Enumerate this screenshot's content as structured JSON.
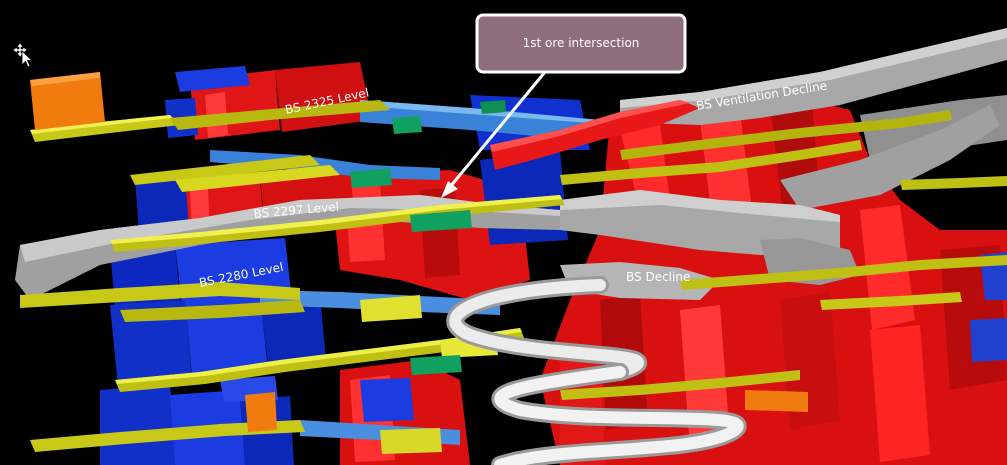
{
  "callout": {
    "text": "1st ore intersection"
  },
  "labels": {
    "level_2325": "BS 2325 Level",
    "level_2297": "BS 2297 Level",
    "level_2280": "BS 2280 Level",
    "ventilation_decline": "BS Ventilation Decline",
    "decline": "BS Decline"
  },
  "icons": {
    "navigation": "navigation-cursor-icon"
  },
  "colors": {
    "background": "#000000",
    "ore_red": "#e01010",
    "stope_blue": "#1030d8",
    "drive_yellow": "#c8c818",
    "decline_grey": "#a8a8a8",
    "spiral_white": "#e8e8e8",
    "callout_bg": "#8e6d7c",
    "accent_orange": "#f07c10",
    "accent_green": "#109050",
    "light_blue": "#5a9ad8"
  }
}
